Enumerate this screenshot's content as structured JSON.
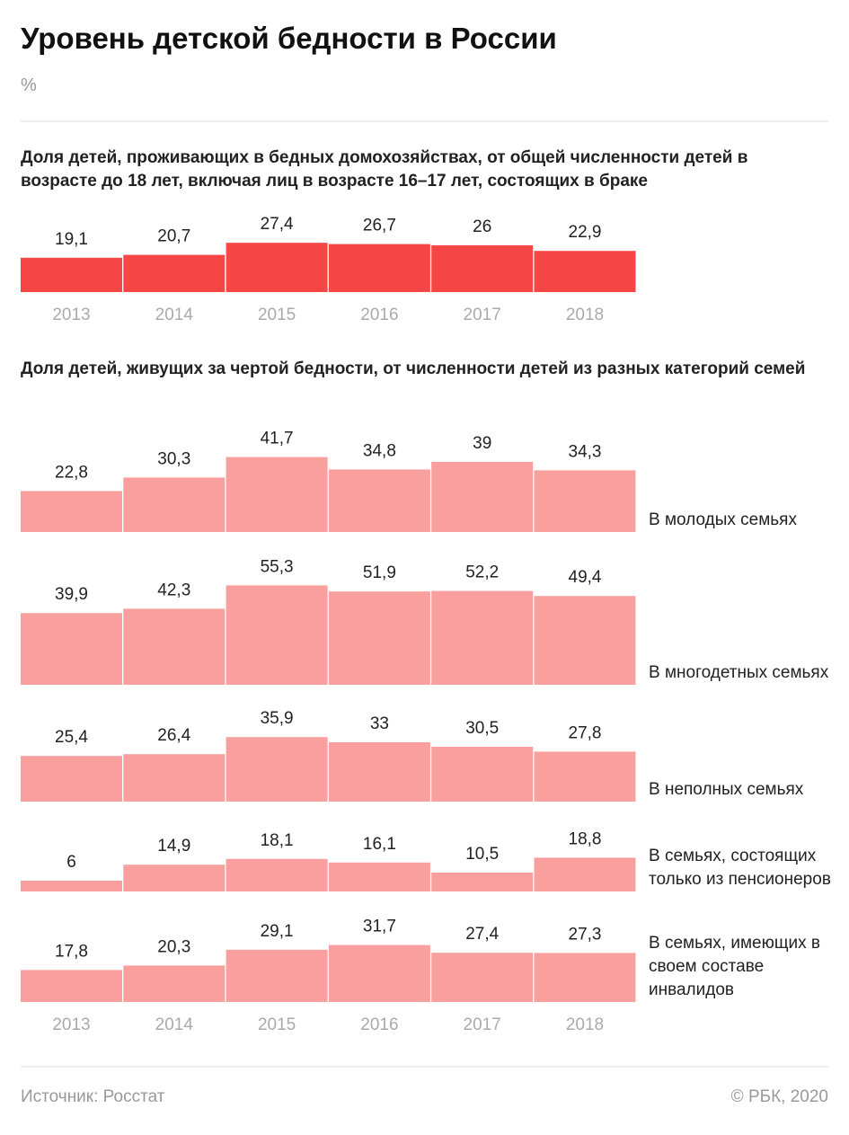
{
  "title": "Уровень детской бедности в России",
  "subtitle": "%",
  "chart_data": [
    {
      "type": "bar",
      "title": "Доля детей, проживающих в бедных домохозяйствах, от общей численности детей в возрасте до 18 лет, включая лиц в возрасте 16–17 лет, состоящих в браке",
      "categories": [
        "2013",
        "2014",
        "2015",
        "2016",
        "2017",
        "2018"
      ],
      "values": [
        19.1,
        20.7,
        27.4,
        26.7,
        26,
        22.9
      ],
      "value_labels": [
        "19,1",
        "20,7",
        "27,4",
        "26,7",
        "26",
        "22,9"
      ],
      "color": "#f74646"
    },
    {
      "type": "bar",
      "title": "Доля детей, живущих за чертой бедности, от численности детей из разных категорий семей",
      "categories": [
        "2013",
        "2014",
        "2015",
        "2016",
        "2017",
        "2018"
      ],
      "series": [
        {
          "name": "В молодых семьях",
          "color": "#f9a09e",
          "values": [
            22.8,
            30.3,
            41.7,
            34.8,
            39,
            34.3
          ],
          "value_labels": [
            "22,8",
            "30,3",
            "41,7",
            "34,8",
            "39",
            "34,3"
          ]
        },
        {
          "name": "В многодетных семьях",
          "color": "#f9a09e",
          "values": [
            39.9,
            42.3,
            55.3,
            51.9,
            52.2,
            49.4
          ],
          "value_labels": [
            "39,9",
            "42,3",
            "55,3",
            "51,9",
            "52,2",
            "49,4"
          ]
        },
        {
          "name": "В неполных семьях",
          "color": "#f9a09e",
          "values": [
            25.4,
            26.4,
            35.9,
            33,
            30.5,
            27.8
          ],
          "value_labels": [
            "25,4",
            "26,4",
            "35,9",
            "33",
            "30,5",
            "27,8"
          ]
        },
        {
          "name": "В семьях, состоящих только из пенсионеров",
          "color": "#f9a09e",
          "values": [
            6,
            14.9,
            18.1,
            16.1,
            10.5,
            18.8
          ],
          "value_labels": [
            "6",
            "14,9",
            "18,1",
            "16,1",
            "10,5",
            "18,8"
          ]
        },
        {
          "name": "В семьях, имеющих в своем составе инвалидов",
          "color": "#f9a09e",
          "values": [
            17.8,
            20.3,
            29.1,
            31.7,
            27.4,
            27.3
          ],
          "value_labels": [
            "17,8",
            "20,3",
            "29,1",
            "31,7",
            "27,4",
            "27,3"
          ]
        }
      ]
    }
  ],
  "footer": {
    "source": "Источник: Росстат",
    "copyright": "© РБК, 2020"
  }
}
